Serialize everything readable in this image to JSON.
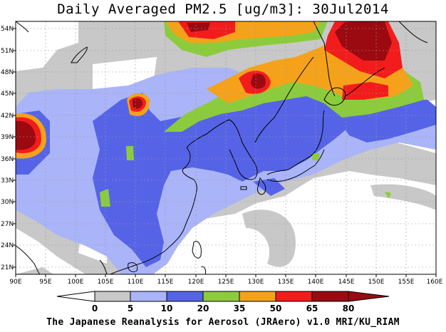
{
  "title": "Daily Averaged PM2.5 [ug/m3]: 30Jul2014",
  "footer": "The Japanese Reanalysis for Aerosol (JRAero) v1.0 MRI/KU_RIAM",
  "map": {
    "lon_range": [
      90,
      160
    ],
    "lat_range": [
      20,
      55
    ],
    "lon_ticks": [
      "90E",
      "95E",
      "100E",
      "105E",
      "110E",
      "115E",
      "120E",
      "125E",
      "130E",
      "135E",
      "140E",
      "145E",
      "150E",
      "155E",
      "160E"
    ],
    "lat_ticks": [
      "54N",
      "51N",
      "48N",
      "45N",
      "42N",
      "39N",
      "36N",
      "33N",
      "30N",
      "27N",
      "24N",
      "21N"
    ],
    "gridlines": true
  },
  "colorbar": {
    "labels": [
      "0",
      "5",
      "10",
      "20",
      "35",
      "50",
      "65",
      "80"
    ],
    "colors": {
      "lt5": "#ffffff",
      "5-10": "#c8c8c8",
      "10-20": "#aab4f8",
      "20-35": "#5564e6",
      "35-50": "#8ccc3c",
      "50-65": "#f5a21a",
      "65-80": "#f21c1c",
      "gt80": "#9a0a10"
    }
  }
}
